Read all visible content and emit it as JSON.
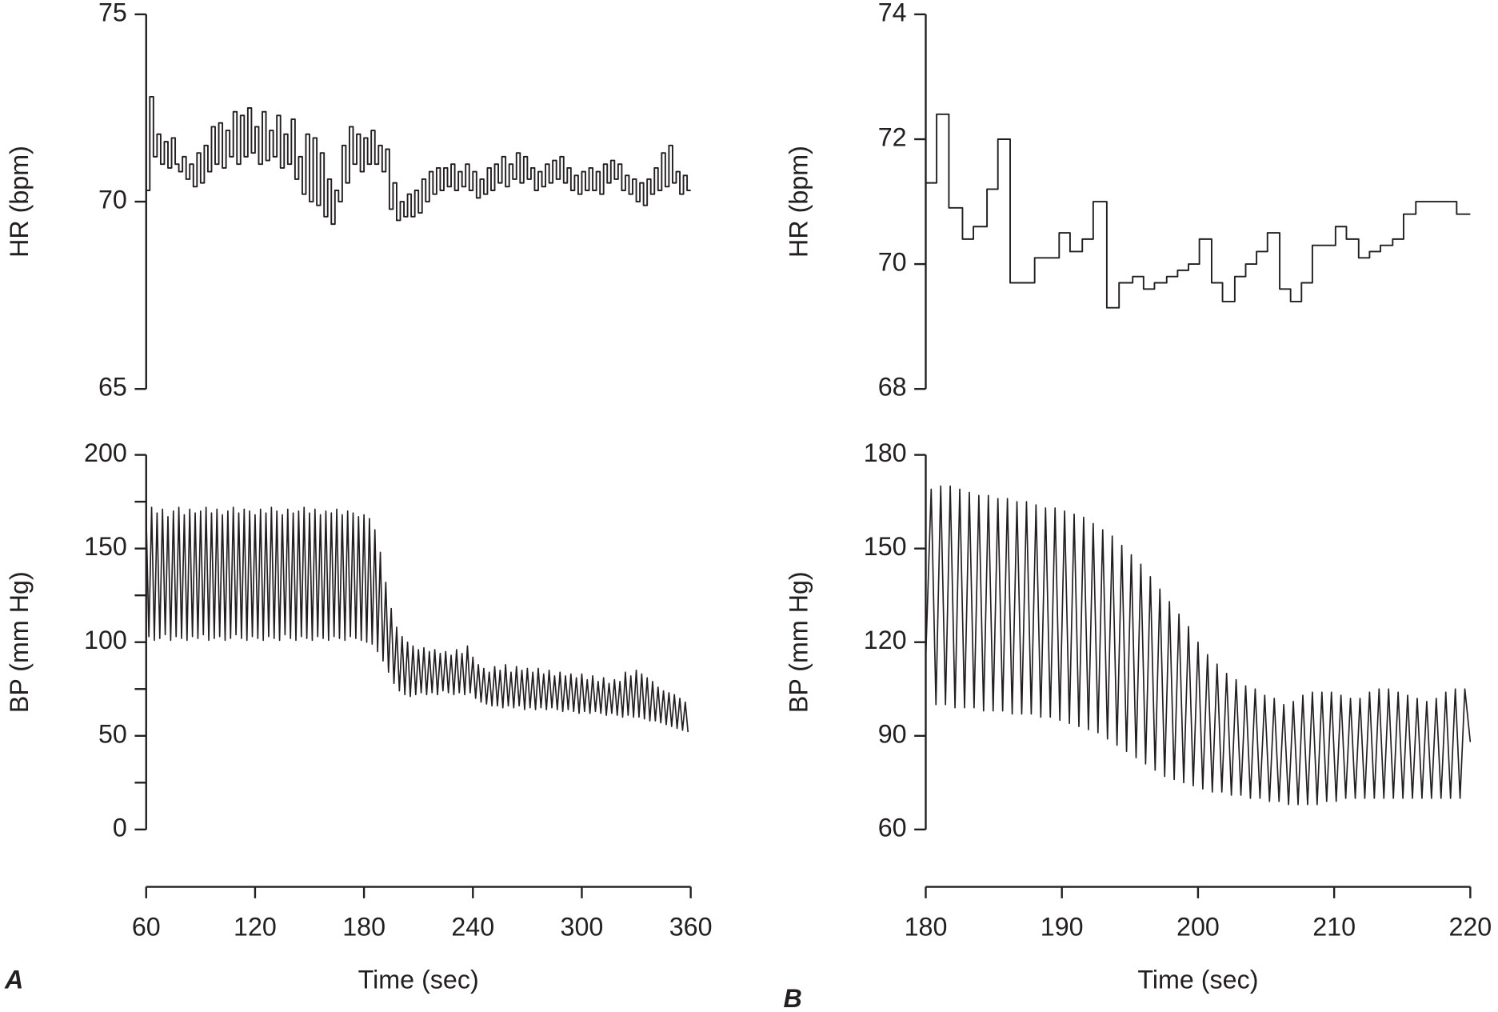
{
  "chart_data": [
    {
      "type": "step",
      "ylabel": "HR (bpm)",
      "color": "#231f20",
      "xlim": [
        60,
        360
      ],
      "ylim": [
        65,
        75
      ],
      "yticks": [
        65,
        70,
        75
      ],
      "x": [
        60,
        62,
        64,
        66,
        68,
        70,
        72,
        74,
        76,
        78,
        80,
        82,
        84,
        86,
        88,
        90,
        92,
        94,
        96,
        98,
        100,
        102,
        104,
        106,
        108,
        110,
        112,
        114,
        116,
        118,
        120,
        122,
        124,
        126,
        128,
        130,
        132,
        134,
        136,
        138,
        140,
        142,
        144,
        146,
        148,
        150,
        152,
        154,
        156,
        158,
        160,
        162,
        164,
        166,
        168,
        170,
        172,
        174,
        176,
        178,
        180,
        182,
        184,
        186,
        188,
        190,
        192,
        194,
        196,
        198,
        200,
        202,
        204,
        206,
        208,
        210,
        212,
        214,
        216,
        218,
        220,
        222,
        224,
        226,
        228,
        230,
        232,
        234,
        236,
        238,
        240,
        242,
        244,
        246,
        248,
        250,
        252,
        254,
        256,
        258,
        260,
        262,
        264,
        266,
        268,
        270,
        272,
        274,
        276,
        278,
        280,
        282,
        284,
        286,
        288,
        290,
        292,
        294,
        296,
        298,
        300,
        302,
        304,
        306,
        308,
        310,
        312,
        314,
        316,
        318,
        320,
        322,
        324,
        326,
        328,
        330,
        332,
        334,
        336,
        338,
        340,
        342,
        344,
        346,
        348,
        350,
        352,
        354,
        356,
        358
      ],
      "values": [
        70.3,
        72.8,
        71.2,
        71.8,
        71.0,
        71.6,
        70.9,
        71.7,
        71.0,
        70.8,
        71.2,
        70.6,
        71.0,
        70.4,
        71.3,
        70.5,
        71.5,
        70.8,
        72.0,
        71.0,
        72.1,
        70.9,
        71.9,
        71.2,
        72.4,
        71.0,
        72.3,
        71.2,
        72.5,
        71.3,
        72.0,
        71.0,
        72.4,
        71.1,
        71.9,
        71.2,
        72.3,
        70.9,
        71.8,
        71.0,
        72.2,
        70.6,
        71.2,
        70.2,
        71.8,
        70.0,
        71.7,
        69.9,
        71.3,
        69.6,
        70.6,
        69.4,
        70.3,
        70.0,
        71.5,
        70.5,
        72.0,
        71.0,
        71.8,
        70.8,
        71.7,
        71.0,
        71.9,
        71.0,
        71.5,
        70.8,
        71.4,
        69.8,
        70.5,
        69.5,
        70.0,
        69.6,
        70.2,
        69.6,
        70.3,
        69.7,
        70.6,
        70.0,
        70.8,
        70.2,
        70.9,
        70.3,
        70.9,
        70.4,
        71.0,
        70.3,
        70.8,
        70.4,
        71.0,
        70.3,
        70.8,
        70.1,
        70.6,
        70.2,
        70.9,
        70.3,
        71.0,
        70.5,
        71.2,
        70.4,
        71.0,
        70.6,
        71.3,
        70.5,
        71.2,
        70.6,
        70.9,
        70.3,
        70.8,
        70.4,
        71.0,
        70.5,
        71.1,
        70.6,
        71.2,
        70.5,
        70.9,
        70.3,
        70.7,
        70.2,
        70.8,
        70.3,
        70.9,
        70.3,
        70.8,
        70.2,
        71.0,
        70.5,
        71.1,
        70.6,
        71.0,
        70.3,
        70.7,
        70.2,
        70.6,
        70.0,
        70.5,
        69.9,
        70.6,
        70.2,
        70.9,
        70.3,
        71.3,
        70.4,
        71.5,
        70.5,
        70.8,
        70.2,
        70.7,
        70.3
      ]
    },
    {
      "type": "line",
      "ylabel": "BP (mm Hg)",
      "xlabel": "Time (sec)",
      "panel_label": "A",
      "color": "#231f20",
      "xlim": [
        60,
        360
      ],
      "xticks": [
        60,
        120,
        180,
        240,
        300,
        360
      ],
      "ylim": [
        0,
        200
      ],
      "yticks": [
        0,
        50,
        100,
        150,
        200
      ],
      "yminor_ticks": [
        25,
        75,
        125,
        175
      ],
      "x": [
        60,
        61.5,
        63,
        64.5,
        66,
        67.5,
        69,
        70.5,
        72,
        73.5,
        75,
        76.5,
        78,
        79.5,
        81,
        82.5,
        84,
        85.5,
        87,
        88.5,
        90,
        91.5,
        93,
        94.5,
        96,
        97.5,
        99,
        100.5,
        102,
        103.5,
        105,
        106.5,
        108,
        109.5,
        111,
        112.5,
        114,
        115.5,
        117,
        118.5,
        120,
        121.5,
        123,
        124.5,
        126,
        127.5,
        129,
        130.5,
        132,
        133.5,
        135,
        136.5,
        138,
        139.5,
        141,
        142.5,
        144,
        145.5,
        147,
        148.5,
        150,
        151.5,
        153,
        154.5,
        156,
        157.5,
        159,
        160.5,
        162,
        163.5,
        165,
        166.5,
        168,
        169.5,
        171,
        172.5,
        174,
        175.5,
        177,
        178.5,
        180,
        181.5,
        183,
        184.5,
        186,
        187.5,
        189,
        190.5,
        192,
        193.5,
        195,
        196.5,
        198,
        199.5,
        201,
        202.5,
        204,
        205.5,
        207,
        208.5,
        210,
        211.5,
        213,
        214.5,
        216,
        217.5,
        219,
        220.5,
        222,
        223.5,
        225,
        226.5,
        228,
        229.5,
        231,
        232.5,
        234,
        235.5,
        237,
        238.5,
        240,
        241.5,
        243,
        244.5,
        246,
        247.5,
        249,
        250.5,
        252,
        253.5,
        255,
        256.5,
        258,
        259.5,
        261,
        262.5,
        264,
        265.5,
        267,
        268.5,
        270,
        271.5,
        273,
        274.5,
        276,
        277.5,
        279,
        280.5,
        282,
        283.5,
        285,
        286.5,
        288,
        289.5,
        291,
        292.5,
        294,
        295.5,
        297,
        298.5,
        300,
        301.5,
        303,
        304.5,
        306,
        307.5,
        309,
        310.5,
        312,
        313.5,
        315,
        316.5,
        318,
        319.5,
        321,
        322.5,
        324,
        325.5,
        327,
        328.5,
        330,
        331.5,
        333,
        334.5,
        336,
        337.5,
        339,
        340.5,
        342,
        343.5,
        345,
        346.5,
        348,
        349.5,
        351,
        352.5,
        354,
        355.5,
        357,
        358.5
      ],
      "values": [
        168,
        103,
        172,
        101,
        169,
        102,
        171,
        104,
        167,
        101,
        170,
        103,
        172,
        102,
        168,
        101,
        171,
        103,
        169,
        102,
        170,
        104,
        172,
        101,
        169,
        102,
        171,
        103,
        168,
        101,
        170,
        102,
        172,
        104,
        169,
        102,
        171,
        101,
        170,
        103,
        168,
        102,
        171,
        101,
        169,
        103,
        172,
        102,
        170,
        101,
        168,
        104,
        171,
        102,
        169,
        101,
        170,
        103,
        172,
        102,
        169,
        101,
        171,
        103,
        168,
        102,
        170,
        101,
        169,
        103,
        171,
        102,
        168,
        101,
        170,
        103,
        169,
        102,
        167,
        101,
        168,
        100,
        166,
        99,
        160,
        95,
        148,
        90,
        132,
        84,
        118,
        78,
        108,
        74,
        103,
        72,
        100,
        71,
        98,
        72,
        96,
        73,
        97,
        72,
        95,
        73,
        96,
        72,
        94,
        74,
        95,
        73,
        93,
        72,
        96,
        73,
        94,
        72,
        98,
        73,
        92,
        70,
        88,
        68,
        86,
        67,
        84,
        66,
        87,
        66,
        85,
        65,
        88,
        66,
        84,
        65,
        87,
        66,
        85,
        64,
        86,
        65,
        84,
        64,
        86,
        65,
        83,
        64,
        85,
        65,
        82,
        64,
        84,
        63,
        82,
        64,
        83,
        63,
        81,
        62,
        83,
        63,
        80,
        62,
        82,
        63,
        79,
        62,
        81,
        61,
        78,
        62,
        80,
        61,
        79,
        60,
        84,
        61,
        82,
        60,
        85,
        60,
        83,
        59,
        81,
        58,
        79,
        58,
        76,
        57,
        74,
        56,
        73,
        55,
        72,
        54,
        70,
        53,
        68,
        52
      ]
    },
    {
      "type": "step",
      "ylabel": "HR (bpm)",
      "color": "#231f20",
      "xlim": [
        180,
        220
      ],
      "ylim": [
        68,
        74
      ],
      "yticks": [
        68,
        70,
        72,
        74
      ],
      "x": [
        180,
        180.8,
        181.7,
        182.7,
        183.5,
        184.5,
        185.3,
        186.2,
        188.0,
        189.8,
        190.6,
        191.5,
        192.3,
        193.3,
        194.2,
        195.2,
        196.0,
        196.8,
        197.7,
        198.5,
        199.3,
        200.1,
        201.0,
        201.8,
        202.7,
        203.5,
        204.3,
        205.1,
        206.0,
        206.8,
        207.6,
        208.4,
        210.1,
        210.9,
        211.8,
        212.6,
        213.4,
        214.3,
        215.1,
        216.0,
        219.0
      ],
      "values": [
        71.3,
        72.4,
        70.9,
        70.4,
        70.6,
        71.2,
        72.0,
        69.7,
        70.1,
        70.5,
        70.2,
        70.4,
        71.0,
        69.3,
        69.7,
        69.8,
        69.6,
        69.7,
        69.8,
        69.9,
        70.0,
        70.4,
        69.7,
        69.4,
        69.8,
        70.0,
        70.2,
        70.5,
        69.6,
        69.4,
        69.7,
        70.3,
        70.6,
        70.4,
        70.1,
        70.2,
        70.3,
        70.4,
        70.8,
        71.0,
        70.8
      ]
    },
    {
      "type": "line",
      "ylabel": "BP (mm Hg)",
      "xlabel": "Time (sec)",
      "panel_label": "B",
      "color": "#231f20",
      "xlim": [
        180,
        220
      ],
      "xticks": [
        180,
        190,
        200,
        210,
        220
      ],
      "ylim": [
        60,
        180
      ],
      "yticks": [
        60,
        90,
        120,
        150,
        180
      ],
      "x": [
        180,
        180.4,
        180.75,
        181.1,
        181.45,
        181.8,
        182.15,
        182.5,
        182.85,
        183.2,
        183.55,
        183.9,
        184.25,
        184.6,
        184.95,
        185.3,
        185.65,
        186,
        186.35,
        186.7,
        187.05,
        187.4,
        187.75,
        188.1,
        188.45,
        188.8,
        189.15,
        189.5,
        189.85,
        190.2,
        190.55,
        190.9,
        191.25,
        191.6,
        191.95,
        192.3,
        192.65,
        193,
        193.35,
        193.7,
        194.05,
        194.4,
        194.75,
        195.1,
        195.45,
        195.8,
        196.15,
        196.5,
        196.85,
        197.2,
        197.55,
        197.9,
        198.25,
        198.6,
        198.95,
        199.3,
        199.65,
        200,
        200.35,
        200.7,
        201.05,
        201.4,
        201.75,
        202.1,
        202.45,
        202.8,
        203.15,
        203.5,
        203.85,
        204.2,
        204.55,
        204.9,
        205.25,
        205.6,
        205.95,
        206.3,
        206.65,
        207,
        207.35,
        207.7,
        208.05,
        208.4,
        208.75,
        209.1,
        209.45,
        209.8,
        210.15,
        210.5,
        210.85,
        211.2,
        211.55,
        211.9,
        212.25,
        212.6,
        212.95,
        213.3,
        213.65,
        214,
        214.35,
        214.7,
        215.05,
        215.4,
        215.75,
        216.1,
        216.45,
        216.8,
        217.15,
        217.5,
        217.85,
        218.2,
        218.55,
        218.9,
        219.25,
        219.6,
        220
      ],
      "values": [
        115,
        169,
        100,
        170,
        100,
        170,
        99,
        169,
        99,
        168,
        99,
        167,
        98,
        167,
        98,
        166,
        98,
        166,
        97,
        165,
        97,
        165,
        97,
        164,
        96,
        163,
        96,
        163,
        95,
        162,
        94,
        161,
        93,
        160,
        92,
        158,
        91,
        156,
        89,
        154,
        87,
        151,
        85,
        148,
        83,
        145,
        81,
        141,
        79,
        137,
        77,
        133,
        76,
        129,
        75,
        125,
        74,
        120,
        73,
        116,
        72,
        113,
        72,
        110,
        71,
        108,
        71,
        106,
        70,
        105,
        70,
        103,
        69,
        102,
        69,
        100,
        68,
        101,
        68,
        103,
        68,
        104,
        68,
        104,
        69,
        104,
        69,
        103,
        70,
        102,
        70,
        102,
        70,
        104,
        70,
        105,
        70,
        105,
        70,
        104,
        70,
        103,
        70,
        102,
        70,
        101,
        70,
        102,
        70,
        104,
        70,
        105,
        70,
        105,
        88
      ]
    }
  ]
}
